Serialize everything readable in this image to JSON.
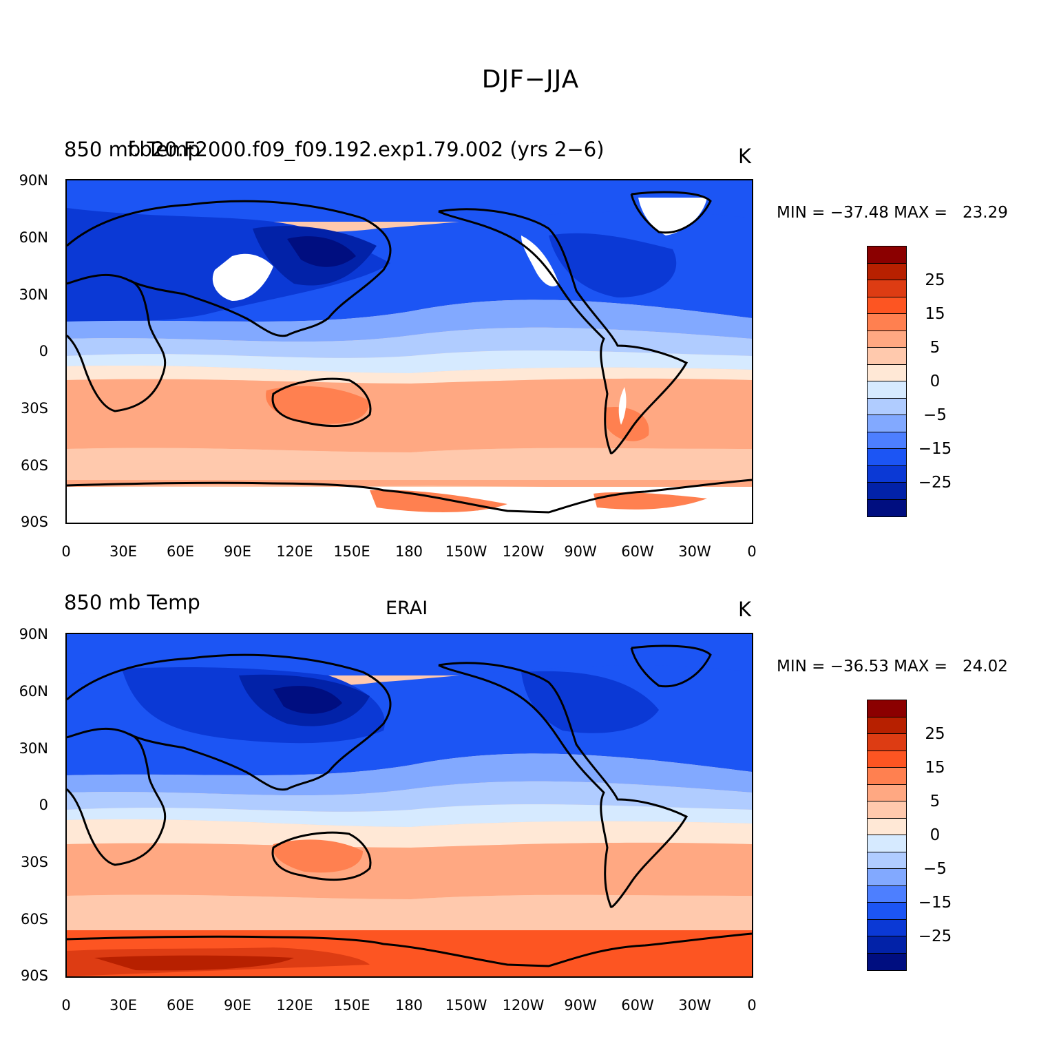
{
  "title": "DJF−JJA",
  "colors": {
    "levels": [
      "#8b0000",
      "#b72000",
      "#dd3c13",
      "#fd5522",
      "#ff8050",
      "#ffa882",
      "#ffc9ad",
      "#ffe8d6",
      "#d6eaff",
      "#b0ccff",
      "#82a9ff",
      "#4d7fff",
      "#1c55f4",
      "#0b39d5",
      "#0222a8",
      "#000e80"
    ],
    "land_outline": "#000000",
    "missing": "#ffffff"
  },
  "panels": [
    {
      "left_label": "850 mb Temp",
      "center_label": "f.b20.F2000.f09_f09.192.exp1.79.002 (yrs 2−6)",
      "units": "K",
      "minmax": "MIN = −37.48 MAX =   23.29"
    },
    {
      "left_label": "850 mb Temp",
      "center_label": "ERAI",
      "units": "K",
      "minmax": "MIN = −36.53 MAX =   24.02"
    }
  ],
  "y_ticks": [
    "90N",
    "60N",
    "30N",
    "0",
    "30S",
    "60S",
    "90S"
  ],
  "x_ticks": [
    "0",
    "30E",
    "60E",
    "90E",
    "120E",
    "150E",
    "180",
    "150W",
    "120W",
    "90W",
    "60W",
    "30W",
    "0"
  ],
  "legend_labels": [
    "25",
    "15",
    "5",
    "0",
    "−5",
    "−15",
    "−25"
  ],
  "chart_data": [
    {
      "type": "heatmap",
      "title": "850 mb Temp",
      "subtitle": "f.b20.F2000.f09_f09.192.exp1.79.002 (yrs 2−6)",
      "units": "K",
      "x_ticks": [
        "0",
        "30E",
        "60E",
        "90E",
        "120E",
        "150E",
        "180",
        "150W",
        "120W",
        "90W",
        "60W",
        "30W",
        "0"
      ],
      "y_ticks": [
        "90N",
        "60N",
        "30N",
        "0",
        "30S",
        "60S",
        "90S"
      ],
      "xlim": [
        0,
        360
      ],
      "ylim": [
        -90,
        90
      ],
      "min": -37.48,
      "max": 23.29,
      "legend_labels": [
        "25",
        "15",
        "5",
        "0",
        "−5",
        "−15",
        "−25"
      ]
    },
    {
      "type": "heatmap",
      "title": "850 mb Temp",
      "subtitle": "ERAI",
      "units": "K",
      "x_ticks": [
        "0",
        "30E",
        "60E",
        "90E",
        "120E",
        "150E",
        "180",
        "150W",
        "120W",
        "90W",
        "60W",
        "30W",
        "0"
      ],
      "y_ticks": [
        "90N",
        "60N",
        "30N",
        "0",
        "30S",
        "60S",
        "90S"
      ],
      "xlim": [
        0,
        360
      ],
      "ylim": [
        -90,
        90
      ],
      "min": -36.53,
      "max": 24.02,
      "legend_labels": [
        "25",
        "15",
        "5",
        "0",
        "−5",
        "−15",
        "−25"
      ]
    }
  ]
}
